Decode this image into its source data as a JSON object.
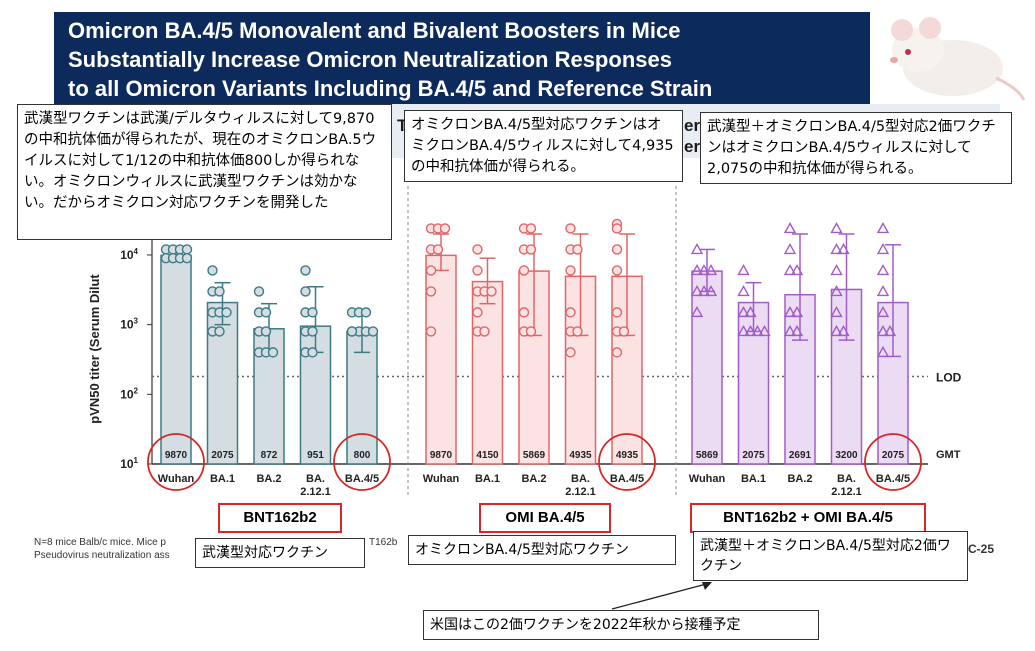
{
  "banner": {
    "title_lines": [
      "Omicron BA.4/5 Monovalent and Bivalent Boosters in Mice",
      "Substantially Increase Omicron Neutralization Responses",
      "to all Omicron Variants Including BA.4/5 and Reference Strain"
    ]
  },
  "subtitle_fragments": [
    "T",
    "er",
    "er"
  ],
  "callouts": {
    "wuhan_vaccine": "武漢型ワクチンは武漢/デルタウィルスに対して9,870の中和抗体価が得られたが、現在のオミクロンBA.5ウイルスに対して1/12の中和抗体価800しか得られない。オミクロンウィルスに武漢型ワクチンは効かない。だからオミクロン対応ワクチンを開発した",
    "omicron_vaccine": "オミクロンBA.4/5型対応ワクチンはオミクロンBA.4/5ウィルスに対して4,935の中和抗体価が得られる。",
    "bivalent_vaccine": "武漢型＋オミクロンBA.4/5型対応2価ワクチンはオミクロンBA.4/5ウィルスに対して2,075の中和抗体価が得られる。",
    "group1_jp": "武漢型対応ワクチン",
    "group2_jp": "オミクロンBA.4/5型対応ワクチン",
    "group3_jp": "武漢型＋オミクロンBA.4/5型対応2価ワクチン",
    "us_plan": "米国はこの2価ワクチンを2022年秋から接種予定"
  },
  "footnotes": {
    "line1a": "N=8 mice Balb/c mice. Mice p",
    "line1b": "T162b",
    "line2": "Pseudovirus neutralization ass"
  },
  "slide_code": "C-25",
  "chart_data": {
    "type": "bar",
    "ylabel": "pVN50 titer (Serum Dilut",
    "yscale": "log",
    "ylim": [
      10,
      20000
    ],
    "yticks": [
      10,
      100,
      1000,
      10000
    ],
    "ytick_labels": [
      "10",
      "10",
      "10",
      "10"
    ],
    "ytick_exponents": [
      "1",
      "2",
      "3",
      "4"
    ],
    "lod": 180,
    "lod_label": "LOD",
    "gmt_label": "GMT",
    "groups": [
      {
        "name": "BNT162b2",
        "color": "#3d7a85",
        "fill": "#d4dee2",
        "marker": "circle",
        "categories": [
          "Wuhan",
          "BA.1",
          "BA.2",
          "BA.\n2.12.1",
          "BA.4/5"
        ],
        "values": [
          9870,
          2075,
          872,
          951,
          800
        ],
        "gmt_labels": [
          "9870",
          "2075",
          "872",
          "951",
          "800"
        ],
        "error_upper": [
          12000,
          4000,
          2000,
          3500,
          1600
        ],
        "error_lower": [
          9000,
          1000,
          400,
          400,
          400
        ],
        "points": [
          [
            12000,
            12000,
            12000,
            12000,
            9000,
            9000,
            9000,
            9000
          ],
          [
            6000,
            3000,
            3000,
            1500,
            1500,
            1500,
            800,
            800
          ],
          [
            3000,
            1500,
            1500,
            800,
            800,
            400,
            400,
            400
          ],
          [
            6000,
            3000,
            1500,
            1500,
            800,
            800,
            400,
            400
          ],
          [
            1500,
            1500,
            1500,
            800,
            800,
            800,
            800,
            800
          ]
        ],
        "highlight": [
          0,
          4
        ]
      },
      {
        "name": "OMI BA.4/5",
        "color": "#e06666",
        "fill": "#fbe3e3",
        "marker": "circle",
        "categories": [
          "Wuhan",
          "BA.1",
          "BA.2",
          "BA.\n2.12.1",
          "BA.4/5"
        ],
        "values": [
          9870,
          4150,
          5869,
          4935,
          4935
        ],
        "gmt_labels": [
          "9870",
          "4150",
          "5869",
          "4935",
          "4935"
        ],
        "error_upper": [
          20000,
          9000,
          20000,
          20000,
          20000
        ],
        "error_lower": [
          6000,
          2000,
          700,
          700,
          700
        ],
        "points": [
          [
            24000,
            24000,
            24000,
            12000,
            12000,
            6000,
            3000,
            800
          ],
          [
            12000,
            6000,
            3000,
            3000,
            3000,
            1500,
            800,
            800
          ],
          [
            24000,
            24000,
            12000,
            12000,
            6000,
            1500,
            800,
            800
          ],
          [
            24000,
            12000,
            12000,
            6000,
            1500,
            800,
            800,
            400
          ],
          [
            48000,
            24000,
            12000,
            6000,
            1500,
            800,
            800,
            400
          ]
        ],
        "highlight": [
          4
        ]
      },
      {
        "name": "BNT162b2 + OMI BA.4/5",
        "color": "#a25cc8",
        "fill": "#ebdcf3",
        "marker": "triangle",
        "categories": [
          "Wuhan",
          "BA.1",
          "BA.2",
          "BA.\n2.12.1",
          "BA.4/5"
        ],
        "values": [
          5869,
          2075,
          2691,
          3200,
          2075
        ],
        "gmt_labels": [
          "5869",
          "2075",
          "2691",
          "3200",
          "2075"
        ],
        "error_upper": [
          12000,
          4000,
          20000,
          20000,
          14000
        ],
        "error_lower": [
          3000,
          800,
          600,
          600,
          350
        ],
        "points": [
          [
            12000,
            6000,
            6000,
            6000,
            3000,
            3000,
            3000,
            1500
          ],
          [
            6000,
            3000,
            1500,
            1500,
            800,
            800,
            800,
            800
          ],
          [
            24000,
            12000,
            6000,
            6000,
            1500,
            1500,
            800,
            800
          ],
          [
            24000,
            12000,
            12000,
            6000,
            3000,
            1500,
            800,
            800
          ],
          [
            24000,
            12000,
            6000,
            3000,
            1500,
            800,
            800,
            400
          ]
        ],
        "highlight": [
          4
        ]
      }
    ]
  }
}
